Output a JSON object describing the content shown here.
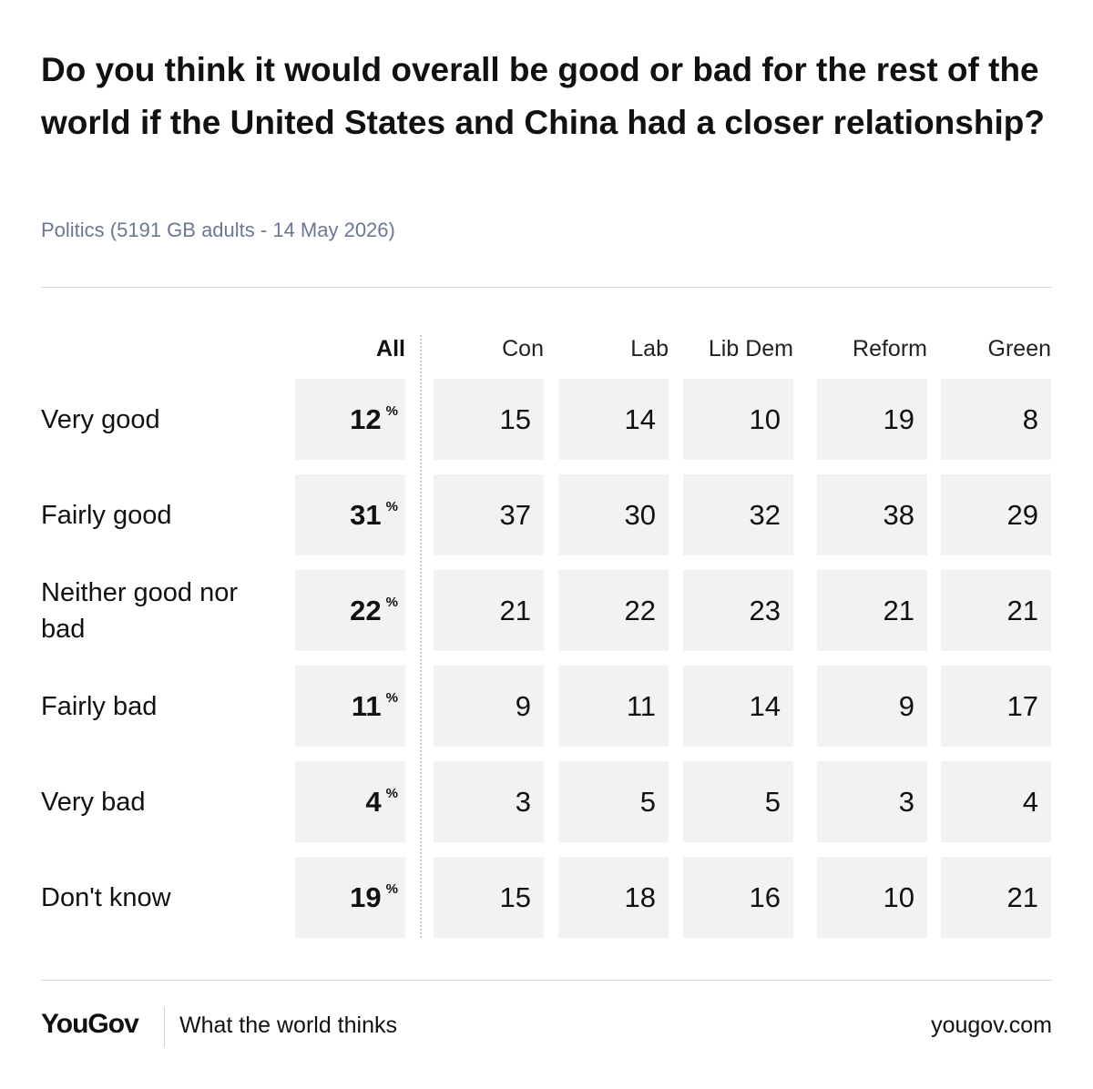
{
  "title": "Do you think it would overall be good or bad for the rest of the world if the United States and China had a closer relationship?",
  "subtitle": "Politics (5191 GB adults - 14 May 2026)",
  "footer": {
    "logo": "YouGov",
    "tagline": "What the world thinks",
    "url": "yougov.com"
  },
  "chart_data": {
    "type": "table",
    "title": "Do you think it would overall be good or bad for the rest of the world if the United States and China had a closer relationship?",
    "unit": "%",
    "columns": [
      "All",
      "Con",
      "Lab",
      "Lib Dem",
      "Reform",
      "Green"
    ],
    "rows": [
      {
        "label": "Very good",
        "values": [
          12,
          15,
          14,
          10,
          19,
          8
        ]
      },
      {
        "label": "Fairly good",
        "values": [
          31,
          37,
          30,
          32,
          38,
          29
        ]
      },
      {
        "label": "Neither good nor bad",
        "values": [
          22,
          21,
          22,
          23,
          21,
          21
        ]
      },
      {
        "label": "Fairly bad",
        "values": [
          11,
          9,
          11,
          14,
          9,
          17
        ]
      },
      {
        "label": "Very bad",
        "values": [
          4,
          3,
          5,
          5,
          3,
          4
        ]
      },
      {
        "label": "Don't know",
        "values": [
          19,
          15,
          18,
          16,
          10,
          21
        ]
      }
    ]
  }
}
